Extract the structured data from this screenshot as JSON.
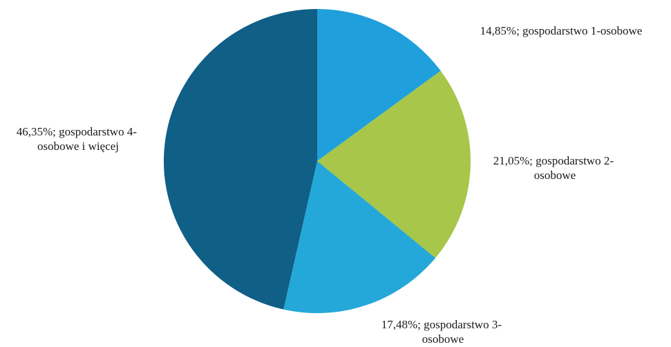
{
  "chart_data": {
    "type": "pie",
    "title": "",
    "slices": [
      {
        "label_line1": "14,85%; gospodarstwo 1-osobowe",
        "label_line2": "",
        "value": 14.85,
        "color": "#1f9fdc"
      },
      {
        "label_line1": "21,05%; gospodarstwo 2-",
        "label_line2": "osobowe",
        "value": 21.05,
        "color": "#a7c64a"
      },
      {
        "label_line1": "17,48%; gospodarstwo 3-",
        "label_line2": "osobowe",
        "value": 17.48,
        "color": "#24a8d9"
      },
      {
        "label_line1": "46,35%; gospodarstwo 4-",
        "label_line2": "osobowe i więcej",
        "value": 46.35,
        "color": "#0f5f86"
      }
    ],
    "start_angle": "12 o'clock",
    "direction": "clockwise",
    "legend": "none"
  }
}
